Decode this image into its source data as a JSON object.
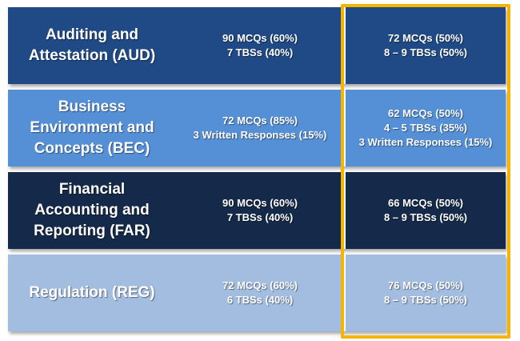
{
  "colors": {
    "aud": "#1f4a86",
    "bec": "#5590d6",
    "far": "#152a4a",
    "reg": "#a3bde0",
    "highlight": "#f4b400"
  },
  "rows": [
    {
      "id": "aud",
      "name_lines": [
        "Auditing and",
        "Attestation (AUD)"
      ],
      "old_lines": [
        "90 MCQs (60%)",
        "7 TBSs (40%)"
      ],
      "new_lines": [
        "72 MCQs (50%)",
        "8 – 9  TBSs (50%)"
      ]
    },
    {
      "id": "bec",
      "name_lines": [
        "Business",
        "Environment and",
        "Concepts (BEC)"
      ],
      "old_lines": [
        "72 MCQs (85%)",
        "3 Written Responses (15%)"
      ],
      "new_lines": [
        "62 MCQs (50%)",
        "4 – 5  TBSs (35%)",
        "3 Written Responses (15%)"
      ]
    },
    {
      "id": "far",
      "name_lines": [
        "Financial",
        "Accounting and",
        "Reporting (FAR)"
      ],
      "old_lines": [
        "90 MCQs (60%)",
        "7 TBSs (40%)"
      ],
      "new_lines": [
        "66 MCQs (50%)",
        "8 – 9  TBSs (50%)"
      ]
    },
    {
      "id": "reg",
      "name_lines": [
        "Regulation (REG)"
      ],
      "old_lines": [
        "72 MCQs (60%)",
        "6 TBSs (40%)"
      ],
      "new_lines": [
        "76 MCQs (50%)",
        "8 – 9  TBSs (50%)"
      ]
    }
  ]
}
